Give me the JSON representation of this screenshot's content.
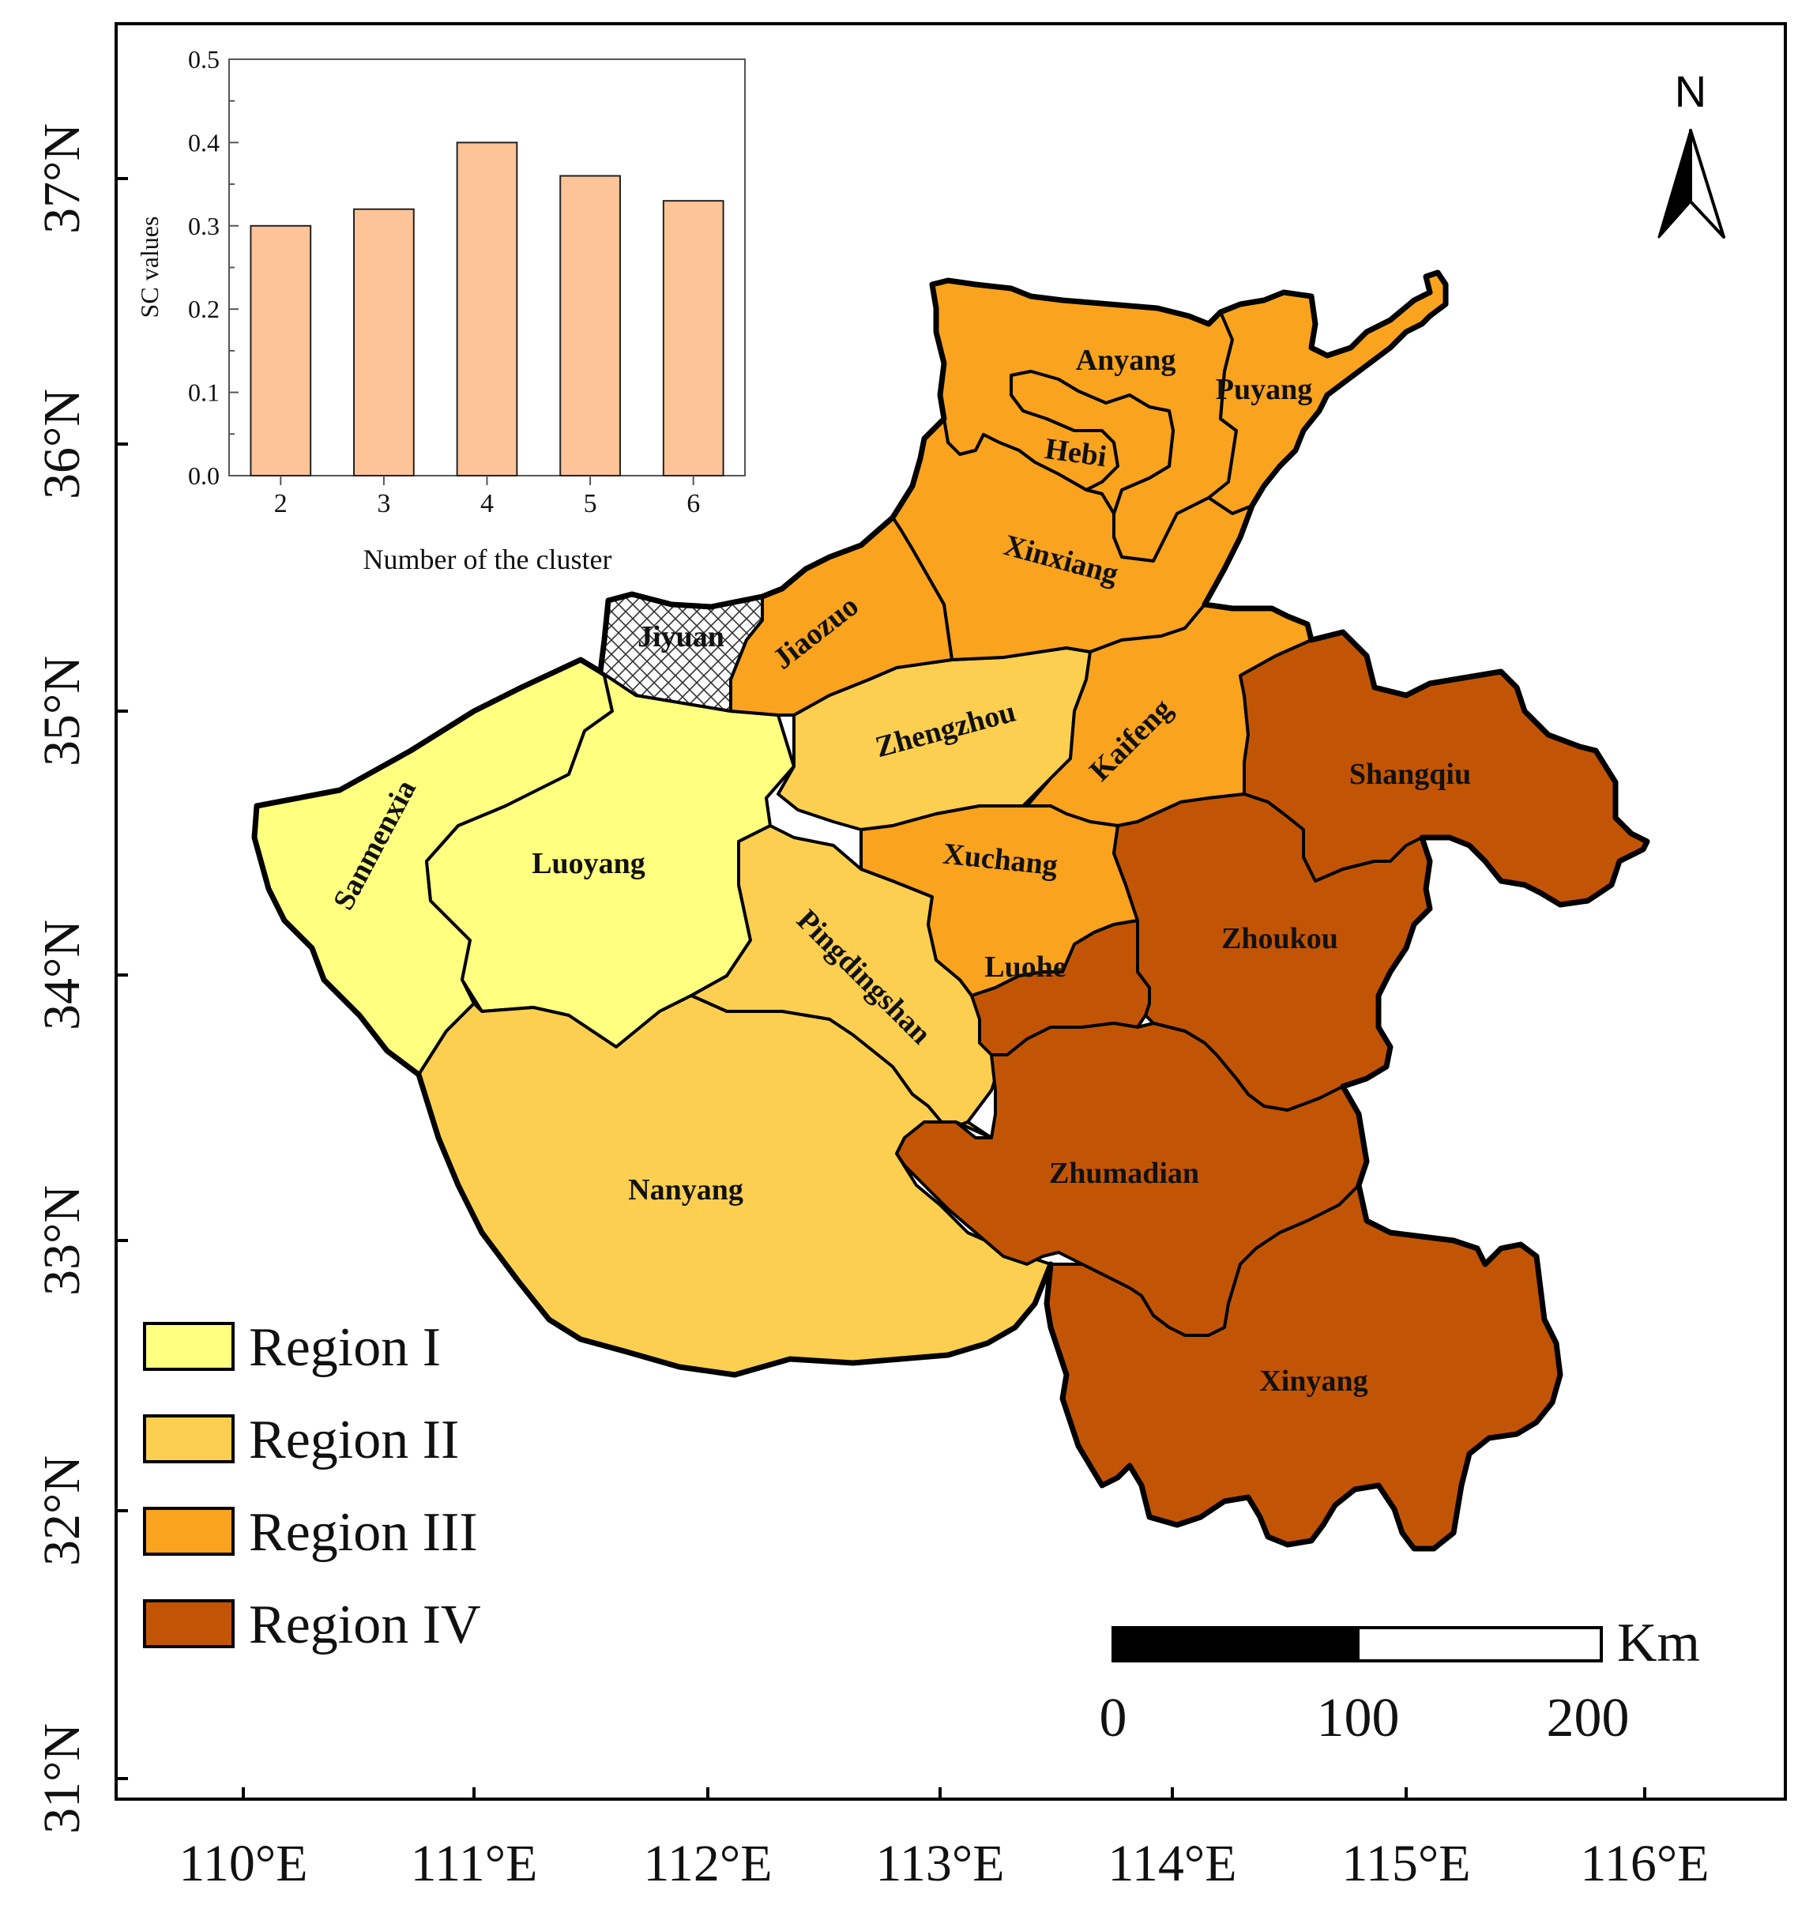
{
  "colors": {
    "region_1": "#ffff80",
    "region_2": "#fdcf50",
    "region_3": "#f9a31e",
    "region_4": "#c25505",
    "inset_bar": "#fdc497"
  },
  "map": {
    "lon_ticks": [
      "110°E",
      "111°E",
      "112°E",
      "113°E",
      "114°E",
      "115°E",
      "116°E"
    ],
    "lat_ticks": [
      "37°N",
      "36°N",
      "35°N",
      "34°N",
      "33°N",
      "32°N",
      "31°N"
    ],
    "cities": {
      "jiyuan": "Jiyuan",
      "anyang": "Anyang",
      "puyang": "Puyang",
      "hebi": "Hebi",
      "xinxiang": "Xinxiang",
      "jiaozuo": "Jiaozuo",
      "zhengzhou": "Zhengzhou",
      "kaifeng": "Kaifeng",
      "shangqiu": "Shangqiu",
      "sanmenxia": "Sanmenxia",
      "luoyang": "Luoyang",
      "xuchang": "Xuchang",
      "pingdingshan": "Pingdingshan",
      "luohe": "Luohe",
      "zhoukou": "Zhoukou",
      "nanyang": "Nanyang",
      "zhumadian": "Zhumadian",
      "xinyang": "Xinyang"
    },
    "north_arrow": "N"
  },
  "legend": {
    "items": [
      "Region I",
      "Region II",
      "Region III",
      "Region IV"
    ]
  },
  "scale_bar": {
    "unit": "Km",
    "labels": [
      "0",
      "100",
      "200"
    ]
  },
  "chart_data": {
    "type": "bar",
    "categories": [
      "2",
      "3",
      "4",
      "5",
      "6"
    ],
    "values": [
      0.3,
      0.32,
      0.4,
      0.36,
      0.33
    ],
    "xlabel": "Number of the cluster",
    "ylabel": "SC values",
    "ylim": [
      0,
      0.5
    ],
    "yticks": [
      "0.0",
      "0.1",
      "0.2",
      "0.3",
      "0.4",
      "0.5"
    ],
    "grid": false
  }
}
